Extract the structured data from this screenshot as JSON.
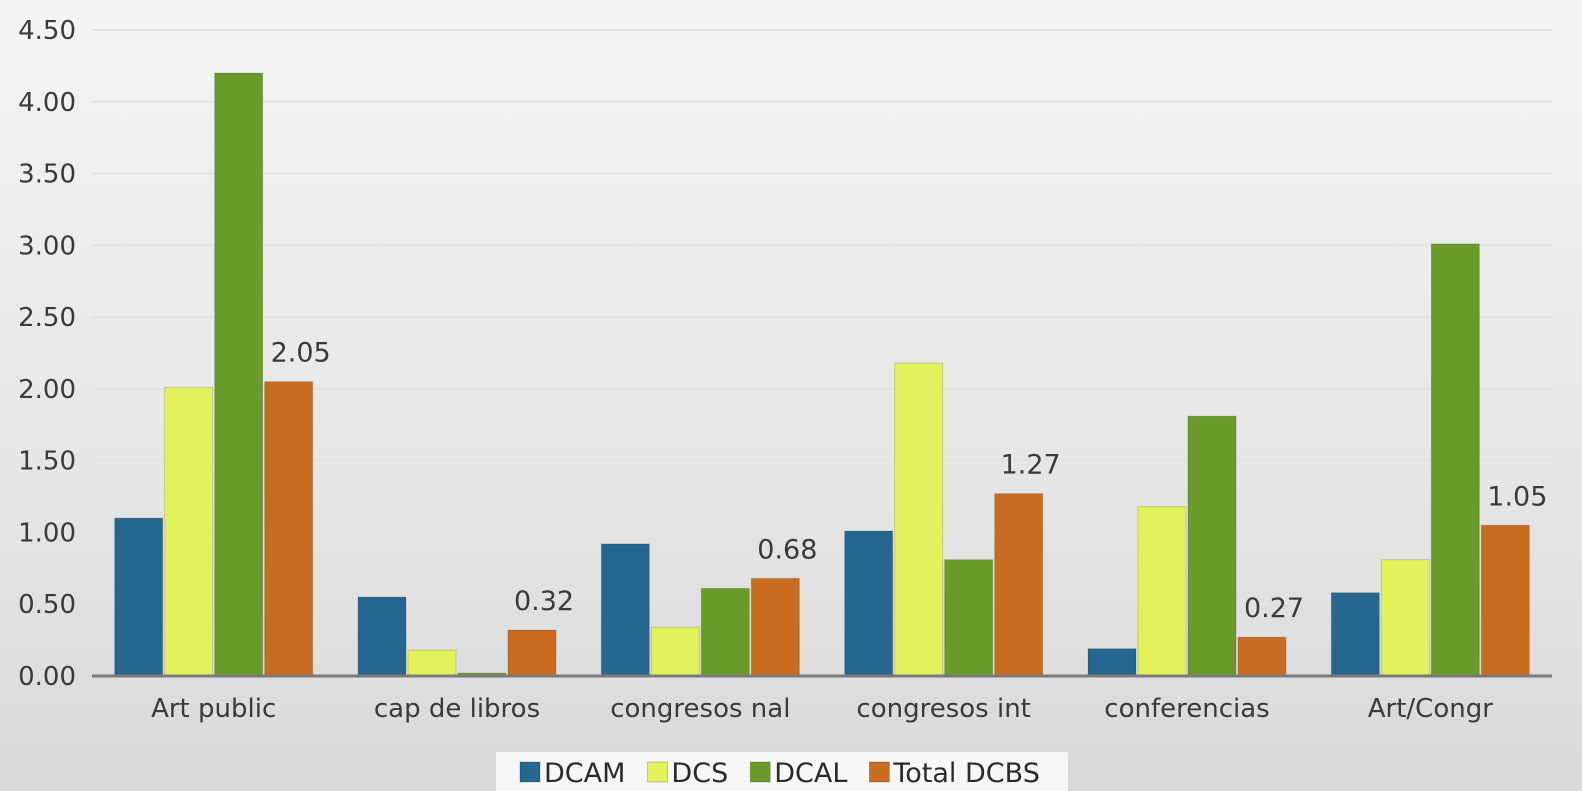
{
  "chart_data": {
    "type": "bar",
    "title": "",
    "xlabel": "",
    "ylabel": "",
    "ylim": [
      0,
      4.5
    ],
    "yticks": [
      "0.00",
      "0.50",
      "1.00",
      "1.50",
      "2.00",
      "2.50",
      "3.00",
      "3.50",
      "4.00",
      "4.50"
    ],
    "grid": true,
    "legend_position": "bottom",
    "categories": [
      "Art public",
      "cap de libros",
      "congresos nal",
      "congresos int",
      "conferencias",
      "Art/Congr"
    ],
    "series": [
      {
        "name": "DCAM",
        "color": "#26678f",
        "values": [
          1.1,
          0.55,
          0.92,
          1.01,
          0.19,
          0.58
        ]
      },
      {
        "name": "DCS",
        "color": "#e3f25a",
        "values": [
          2.01,
          0.18,
          0.34,
          2.18,
          1.18,
          0.81
        ]
      },
      {
        "name": "DCAL",
        "color": "#6a9a2a",
        "values": [
          4.2,
          0.02,
          0.61,
          0.81,
          1.81,
          3.01
        ]
      },
      {
        "name": "Total DCBS",
        "color": "#c96c20",
        "values": [
          2.05,
          0.32,
          0.68,
          1.27,
          0.27,
          1.05
        ],
        "data_labels": [
          "2.05",
          "0.32",
          "0.68",
          "1.27",
          "0.27",
          "1.05"
        ]
      }
    ]
  }
}
